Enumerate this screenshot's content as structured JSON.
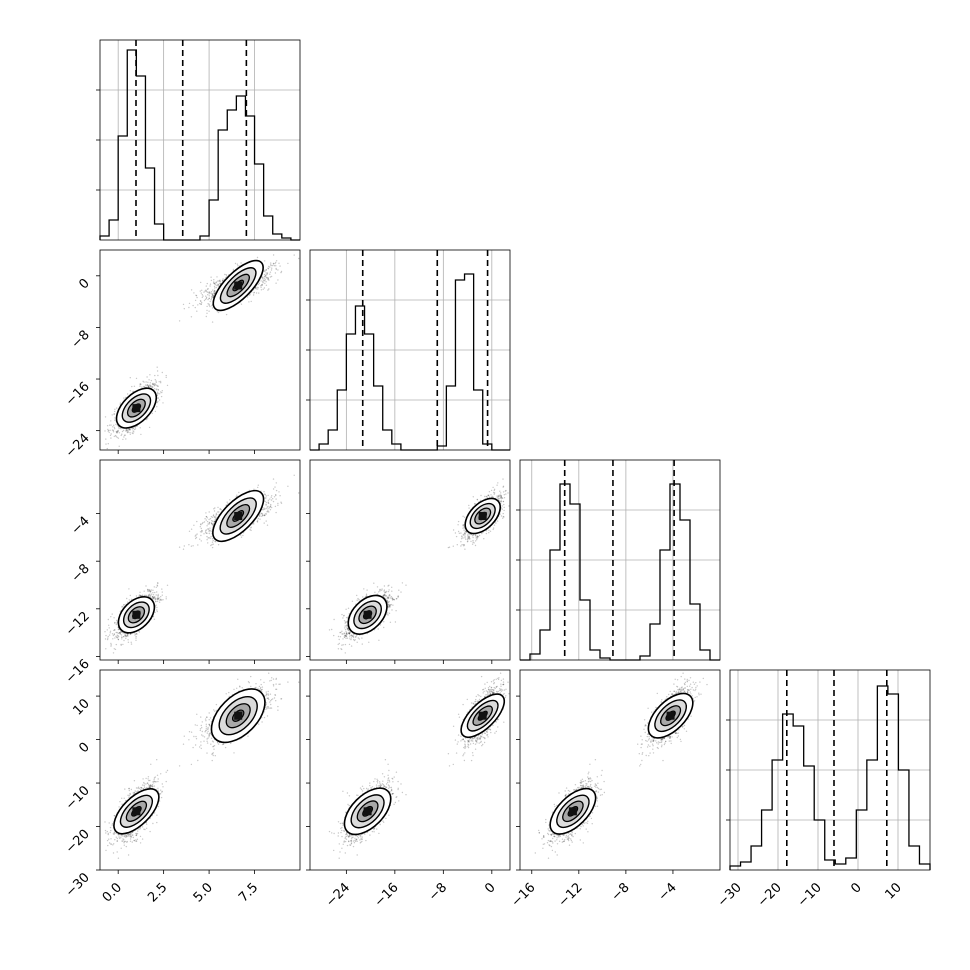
{
  "chart_data": {
    "type": "corner",
    "title": "",
    "parameters": [
      {
        "xlim": [
          -1,
          10
        ],
        "ylim": [
          -30,
          10
        ],
        "x_ticks": [
          "0.0",
          "2.5",
          "5.0",
          "7.5"
        ],
        "x_tick_values": [
          0.0,
          2.5,
          5.0,
          7.5
        ],
        "hist": {
          "range": [
            -1,
            10
          ],
          "counts": [
            0.02,
            0.1,
            0.52,
            0.95,
            0.82,
            0.36,
            0.08,
            0.0,
            0.0,
            0.0,
            0.0,
            0.02,
            0.2,
            0.55,
            0.65,
            0.72,
            0.62,
            0.38,
            0.12,
            0.03,
            0.01,
            0.0
          ],
          "quantiles": [
            0.98,
            3.55,
            7.05
          ]
        }
      },
      {
        "xlim": [
          -30,
          3
        ],
        "ylim": [
          -27,
          4
        ],
        "x_ticks": [
          "−24",
          "−16",
          "−8",
          "0"
        ],
        "x_tick_values": [
          -24,
          -16,
          -8,
          0
        ],
        "y_ticks": [
          "0",
          "−8",
          "−16",
          "−24"
        ],
        "y_tick_values": [
          0,
          -8,
          -16,
          -24
        ],
        "hist": {
          "range": [
            -30,
            3
          ],
          "counts": [
            0.0,
            0.03,
            0.1,
            0.3,
            0.58,
            0.72,
            0.58,
            0.32,
            0.1,
            0.03,
            0.0,
            0.0,
            0.0,
            0.0,
            0.02,
            0.32,
            0.85,
            0.88,
            0.3,
            0.03,
            0.0,
            0.0
          ],
          "quantiles": [
            -21.3,
            -9.0,
            -0.7
          ]
        }
      },
      {
        "xlim": [
          -17,
          0
        ],
        "ylim": [
          -16.3,
          0.5
        ],
        "x_ticks": [
          "−16",
          "−12",
          "−8",
          "−4"
        ],
        "x_tick_values": [
          -16,
          -12,
          -8,
          -4
        ],
        "y_ticks": [
          "−4",
          "−8",
          "−12",
          "−16"
        ],
        "y_tick_values": [
          -4,
          -8,
          -12,
          -16
        ],
        "hist": {
          "range": [
            -17,
            0
          ],
          "counts": [
            0.0,
            0.03,
            0.15,
            0.55,
            0.88,
            0.78,
            0.3,
            0.05,
            0.01,
            0.0,
            0.0,
            0.0,
            0.02,
            0.18,
            0.55,
            0.88,
            0.7,
            0.28,
            0.05,
            0.0
          ],
          "quantiles": [
            -13.2,
            -9.1,
            -3.9
          ]
        }
      },
      {
        "xlim": [
          -32,
          18
        ],
        "ylim": [
          -30,
          16
        ],
        "x_ticks": [
          "−30",
          "−20",
          "−10",
          "0",
          "10"
        ],
        "x_tick_values": [
          -30,
          -20,
          -10,
          0,
          10
        ],
        "y_ticks": [
          "10",
          "0",
          "−10",
          "−20",
          "−30"
        ],
        "y_tick_values": [
          10,
          0,
          -10,
          -20,
          -30
        ],
        "hist": {
          "range": [
            -32,
            18
          ],
          "counts": [
            0.02,
            0.04,
            0.12,
            0.3,
            0.55,
            0.78,
            0.72,
            0.52,
            0.25,
            0.05,
            0.03,
            0.06,
            0.3,
            0.55,
            0.92,
            0.88,
            0.5,
            0.12,
            0.03
          ],
          "quantiles": [
            -17.8,
            -6.0,
            7.2
          ]
        }
      }
    ],
    "modes": [
      {
        "means": [
          1.0,
          -20.5,
          -12.5,
          -16.5
        ],
        "sds": [
          0.55,
          1.9,
          0.9,
          3.3
        ]
      },
      {
        "means": [
          6.6,
          -1.5,
          -4.2,
          5.5
        ],
        "sds": [
          0.9,
          1.5,
          0.9,
          3.2
        ]
      }
    ],
    "grid": true,
    "quantile_line_style": "dashed"
  }
}
